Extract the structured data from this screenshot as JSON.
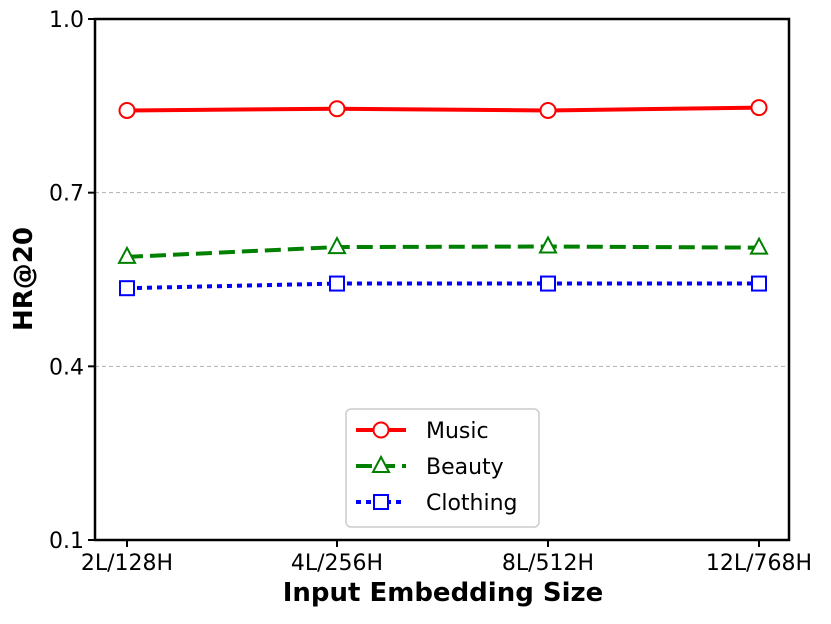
{
  "chart_data": {
    "type": "line",
    "title": "",
    "xlabel": "Input Embedding Size",
    "ylabel": "HR@20",
    "categories": [
      "2L/128H",
      "4L/256H",
      "8L/512H",
      "12L/768H"
    ],
    "ylim": [
      0.1,
      1.0
    ],
    "yticks": [
      "0.1",
      "0.4",
      "0.7",
      "1.0"
    ],
    "grid": "horizontal dashed at 0.4 and 0.7",
    "legend_position": "lower-center",
    "series": [
      {
        "name": "Music",
        "values": [
          0.842,
          0.845,
          0.842,
          0.847
        ],
        "color": "#ff0000",
        "marker": "circle",
        "linestyle": "solid"
      },
      {
        "name": "Beauty",
        "values": [
          0.589,
          0.606,
          0.607,
          0.605
        ],
        "color": "#008000",
        "marker": "triangle",
        "linestyle": "dashed"
      },
      {
        "name": "Clothing",
        "values": [
          0.535,
          0.543,
          0.543,
          0.543
        ],
        "color": "#0000ff",
        "marker": "square",
        "linestyle": "dotted"
      }
    ]
  }
}
